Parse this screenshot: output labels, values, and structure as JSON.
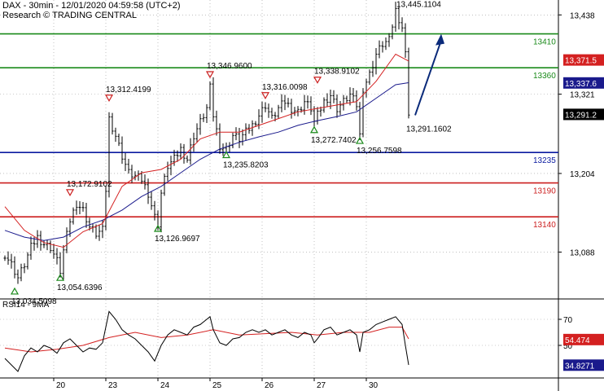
{
  "header": {
    "title": "DAX - 30min - 12/01/2020 04:59:58 (UTC+2)",
    "source": "Research © TRADING CENTRAL"
  },
  "colors": {
    "background": "#ffffff",
    "candle": "#000000",
    "fast_ma": "#d42020",
    "slow_ma": "#1a1a8c",
    "support_line": "#0a1aa0",
    "support_line_red": "#cc1f1f",
    "resistance_line": "#1a8a1a",
    "arrow": "#0a2a7a",
    "marker_up": "#1a8a1a",
    "marker_down": "#cc1f1f"
  },
  "chart_data": [
    {
      "type": "candlestick",
      "ylim": [
        13020,
        13460
      ],
      "y_ticks": [
        "13,438",
        "13,321",
        "13,204",
        "13,088"
      ],
      "x_ticks": [
        "20",
        "23",
        "24",
        "25",
        "26",
        "27",
        "30"
      ],
      "x_tick_index": [
        15,
        31,
        47,
        63,
        79,
        95,
        111
      ],
      "bar_count": 125,
      "close_path": [
        [
          0,
          13085
        ],
        [
          2,
          13070
        ],
        [
          4,
          13050
        ],
        [
          6,
          13070
        ],
        [
          8,
          13095
        ],
        [
          10,
          13110
        ],
        [
          12,
          13100
        ],
        [
          14,
          13095
        ],
        [
          16,
          13075
        ],
        [
          17,
          13060
        ],
        [
          18,
          13090
        ],
        [
          20,
          13135
        ],
        [
          22,
          13160
        ],
        [
          24,
          13150
        ],
        [
          26,
          13125
        ],
        [
          28,
          13115
        ],
        [
          30,
          13120
        ],
        [
          31,
          13180
        ],
        [
          32,
          13285
        ],
        [
          34,
          13260
        ],
        [
          36,
          13230
        ],
        [
          38,
          13205
        ],
        [
          40,
          13200
        ],
        [
          42,
          13195
        ],
        [
          44,
          13175
        ],
        [
          46,
          13140
        ],
        [
          47,
          13130
        ],
        [
          48,
          13175
        ],
        [
          50,
          13215
        ],
        [
          52,
          13225
        ],
        [
          54,
          13240
        ],
        [
          56,
          13225
        ],
        [
          58,
          13260
        ],
        [
          60,
          13280
        ],
        [
          62,
          13300
        ],
        [
          63,
          13330
        ],
        [
          64,
          13290
        ],
        [
          66,
          13245
        ],
        [
          68,
          13240
        ],
        [
          70,
          13260
        ],
        [
          72,
          13255
        ],
        [
          74,
          13265
        ],
        [
          76,
          13275
        ],
        [
          78,
          13290
        ],
        [
          80,
          13305
        ],
        [
          82,
          13285
        ],
        [
          84,
          13300
        ],
        [
          86,
          13310
        ],
        [
          88,
          13300
        ],
        [
          90,
          13295
        ],
        [
          92,
          13310
        ],
        [
          94,
          13300
        ],
        [
          95,
          13280
        ],
        [
          96,
          13290
        ],
        [
          98,
          13310
        ],
        [
          100,
          13320
        ],
        [
          102,
          13300
        ],
        [
          104,
          13310
        ],
        [
          106,
          13320
        ],
        [
          108,
          13305
        ],
        [
          109,
          13260
        ],
        [
          110,
          13330
        ],
        [
          112,
          13350
        ],
        [
          114,
          13380
        ],
        [
          116,
          13395
        ],
        [
          118,
          13400
        ],
        [
          120,
          13445
        ],
        [
          122,
          13420
        ],
        [
          123,
          13380
        ],
        [
          124,
          13295
        ]
      ],
      "fast_ma": [
        [
          0,
          13155
        ],
        [
          6,
          13120
        ],
        [
          12,
          13102
        ],
        [
          18,
          13095
        ],
        [
          24,
          13118
        ],
        [
          30,
          13130
        ],
        [
          36,
          13185
        ],
        [
          42,
          13205
        ],
        [
          48,
          13210
        ],
        [
          54,
          13225
        ],
        [
          60,
          13255
        ],
        [
          66,
          13265
        ],
        [
          72,
          13265
        ],
        [
          78,
          13275
        ],
        [
          84,
          13285
        ],
        [
          90,
          13295
        ],
        [
          96,
          13300
        ],
        [
          102,
          13305
        ],
        [
          108,
          13310
        ],
        [
          114,
          13340
        ],
        [
          120,
          13380
        ],
        [
          124,
          13370
        ]
      ],
      "slow_ma": [
        [
          0,
          13120
        ],
        [
          6,
          13110
        ],
        [
          12,
          13105
        ],
        [
          18,
          13110
        ],
        [
          24,
          13125
        ],
        [
          30,
          13135
        ],
        [
          36,
          13150
        ],
        [
          42,
          13170
        ],
        [
          48,
          13185
        ],
        [
          54,
          13205
        ],
        [
          60,
          13225
        ],
        [
          66,
          13240
        ],
        [
          72,
          13250
        ],
        [
          78,
          13258
        ],
        [
          84,
          13265
        ],
        [
          90,
          13275
        ],
        [
          96,
          13282
        ],
        [
          102,
          13288
        ],
        [
          108,
          13295
        ],
        [
          114,
          13315
        ],
        [
          120,
          13335
        ],
        [
          124,
          13338
        ]
      ],
      "levels": [
        {
          "value": 13410,
          "label": "13410",
          "kind": "resistance"
        },
        {
          "value": 13360,
          "label": "13360",
          "kind": "resistance"
        },
        {
          "value": 13235,
          "label": "13235",
          "kind": "support"
        },
        {
          "value": 13190,
          "label": "13190",
          "kind": "support_red"
        },
        {
          "value": 13140,
          "label": "13140",
          "kind": "support_red"
        }
      ],
      "price_tags": [
        {
          "value": 13371.5,
          "label": "13,371.5",
          "kind": "fast_ma"
        },
        {
          "value": 13337.6,
          "label": "13,337.6",
          "kind": "slow_ma"
        },
        {
          "value": 13291.2,
          "label": "13,291.2",
          "kind": "last"
        }
      ],
      "annotations": [
        {
          "bar": 124,
          "value": 13445.1104,
          "label": "13,445.1104",
          "marker": "none"
        },
        {
          "bar": 63,
          "value": 13346.96,
          "label": "13,346.9600",
          "marker": "down"
        },
        {
          "bar": 96,
          "value": 13338.9102,
          "label": "13,338.9102",
          "marker": "down"
        },
        {
          "bar": 80,
          "value": 13316.0098,
          "label": "13,316.0098",
          "marker": "down"
        },
        {
          "bar": 32,
          "value": 13312.4199,
          "label": "13,312.4199",
          "marker": "down"
        },
        {
          "bar": 124,
          "value": 13291.1602,
          "label": "13,291.1602",
          "marker": "none"
        },
        {
          "bar": 95,
          "value": 13272.7402,
          "label": "13,272.7402",
          "marker": "up"
        },
        {
          "bar": 109,
          "value": 13256.7598,
          "label": "13,256.7598",
          "marker": "up"
        },
        {
          "bar": 68,
          "value": 13235.8203,
          "label": "13,235.8203",
          "marker": "up"
        },
        {
          "bar": 20,
          "value": 13172.9102,
          "label": "13,172.9102",
          "marker": "down"
        },
        {
          "bar": 47,
          "value": 13126.9697,
          "label": "13,126.9697",
          "marker": "up"
        },
        {
          "bar": 17,
          "value": 13054.6396,
          "label": "13,054.6396",
          "marker": "up"
        },
        {
          "bar": 3,
          "value": 13034.5098,
          "label": "13,034.5098",
          "marker": "up"
        }
      ],
      "forecast_arrow": {
        "from": [
          126,
          13290
        ],
        "to": [
          134,
          13410
        ]
      }
    },
    {
      "type": "line",
      "title": "RSI14 - 9MA",
      "ylim": [
        25,
        85
      ],
      "y_ticks": [
        {
          "value": 70,
          "label": "70"
        },
        {
          "value": 50,
          "label": "50"
        }
      ],
      "rsi": [
        [
          0,
          40
        ],
        [
          2,
          35
        ],
        [
          4,
          30
        ],
        [
          6,
          42
        ],
        [
          8,
          48
        ],
        [
          10,
          45
        ],
        [
          12,
          50
        ],
        [
          14,
          48
        ],
        [
          16,
          44
        ],
        [
          18,
          52
        ],
        [
          20,
          55
        ],
        [
          22,
          50
        ],
        [
          24,
          45
        ],
        [
          26,
          48
        ],
        [
          28,
          47
        ],
        [
          30,
          52
        ],
        [
          32,
          76
        ],
        [
          34,
          70
        ],
        [
          36,
          62
        ],
        [
          38,
          58
        ],
        [
          40,
          55
        ],
        [
          42,
          50
        ],
        [
          44,
          45
        ],
        [
          46,
          38
        ],
        [
          48,
          50
        ],
        [
          50,
          58
        ],
        [
          52,
          62
        ],
        [
          54,
          60
        ],
        [
          56,
          58
        ],
        [
          58,
          64
        ],
        [
          60,
          66
        ],
        [
          62,
          70
        ],
        [
          63,
          72
        ],
        [
          64,
          62
        ],
        [
          66,
          52
        ],
        [
          68,
          50
        ],
        [
          70,
          55
        ],
        [
          72,
          56
        ],
        [
          74,
          60
        ],
        [
          76,
          62
        ],
        [
          78,
          60
        ],
        [
          80,
          62
        ],
        [
          82,
          58
        ],
        [
          84,
          60
        ],
        [
          86,
          62
        ],
        [
          88,
          58
        ],
        [
          90,
          56
        ],
        [
          92,
          60
        ],
        [
          94,
          58
        ],
        [
          95,
          52
        ],
        [
          96,
          55
        ],
        [
          98,
          62
        ],
        [
          100,
          64
        ],
        [
          102,
          58
        ],
        [
          104,
          60
        ],
        [
          106,
          62
        ],
        [
          108,
          58
        ],
        [
          109,
          45
        ],
        [
          110,
          60
        ],
        [
          112,
          62
        ],
        [
          114,
          66
        ],
        [
          116,
          68
        ],
        [
          118,
          70
        ],
        [
          120,
          72
        ],
        [
          122,
          66
        ],
        [
          123,
          50
        ],
        [
          124,
          35
        ]
      ],
      "ma": [
        [
          0,
          48
        ],
        [
          8,
          45
        ],
        [
          16,
          47
        ],
        [
          24,
          50
        ],
        [
          32,
          56
        ],
        [
          40,
          60
        ],
        [
          48,
          56
        ],
        [
          56,
          58
        ],
        [
          64,
          62
        ],
        [
          72,
          58
        ],
        [
          80,
          59
        ],
        [
          88,
          60
        ],
        [
          96,
          58
        ],
        [
          104,
          60
        ],
        [
          112,
          60
        ],
        [
          118,
          64
        ],
        [
          122,
          64
        ],
        [
          124,
          55
        ]
      ],
      "price_tags": [
        {
          "value": 54.474,
          "label": "54.474",
          "kind": "ma"
        },
        {
          "value": 34.8271,
          "label": "34.8271",
          "kind": "rsi"
        }
      ]
    }
  ]
}
